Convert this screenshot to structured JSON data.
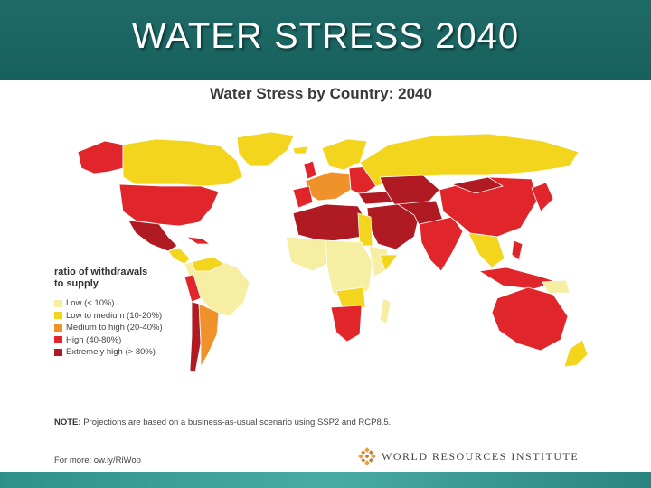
{
  "slide": {
    "title": "WATER STRESS 2040"
  },
  "map": {
    "title": "Water Stress by Country: 2040",
    "legend": {
      "title": "ratio of withdrawals to supply",
      "items": [
        {
          "label": "Low (< 10%)",
          "color": "#f6eea2"
        },
        {
          "label": "Low to medium (10-20%)",
          "color": "#f2d51c"
        },
        {
          "label": "Medium to high  (20-40%)",
          "color": "#f0922b"
        },
        {
          "label": "High (40-80%)",
          "color": "#e0262a"
        },
        {
          "label": "Extremely high (> 80%)",
          "color": "#b01a22"
        }
      ]
    },
    "ocean_color": "#ffffff"
  },
  "footer": {
    "note_label": "NOTE:",
    "note_text": " Projections are based on a business-as-usual scenario using SSP2 and RCP8.5.",
    "more": "For more: ow.ly/RiWop",
    "org": "WORLD RESOURCES INSTITUTE"
  },
  "colors": {
    "title_bar": "#1f6b68",
    "bottom_bar": "#3a9e9a"
  }
}
